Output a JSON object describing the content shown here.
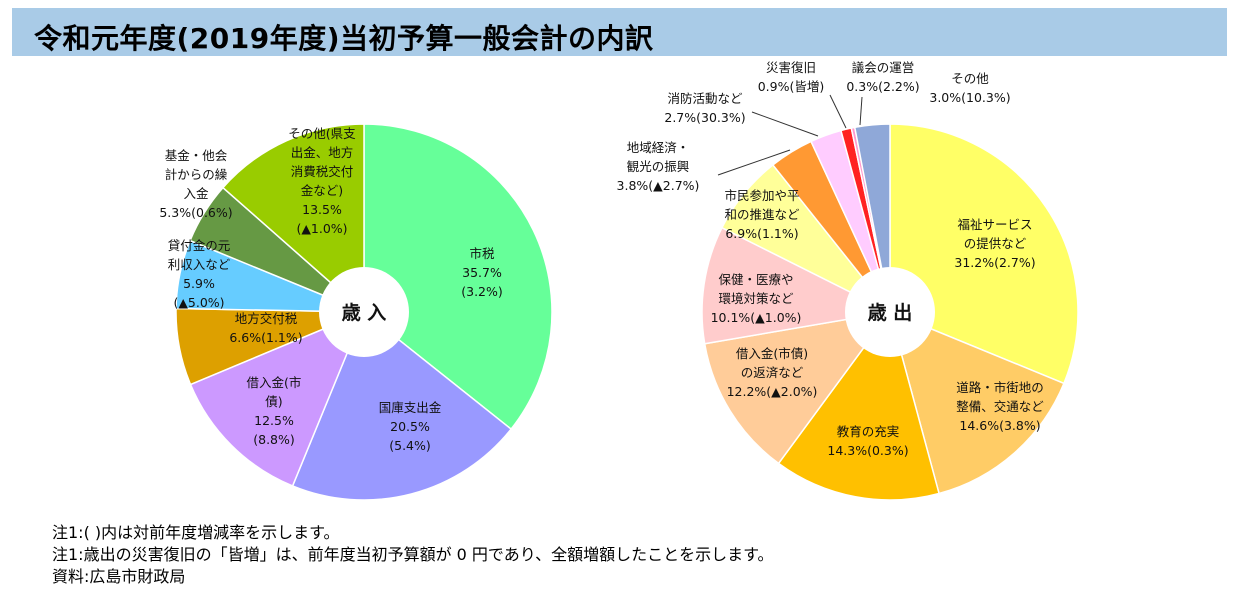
{
  "title": "令和元年度(2019年度)当初予算一般会計の内訳",
  "chart_data": [
    {
      "type": "pie",
      "center_label": "歳 入",
      "slices": [
        {
          "name": "市税",
          "value": 35.7,
          "change": "(3.2%)",
          "color": "#66ff99",
          "label_lines": [
            "市税",
            "35.7%",
            "(3.2%)"
          ]
        },
        {
          "name": "国庫支出金",
          "value": 20.5,
          "change": "(5.4%)",
          "color": "#9999ff",
          "label_lines": [
            "国庫支出金",
            "20.5%",
            "(5.4%)"
          ]
        },
        {
          "name": "借入金(市債)",
          "value": 12.5,
          "change": "(8.8%)",
          "color": "#cc99ff",
          "label_lines": [
            "借入金(市",
            "債)",
            "12.5%",
            "(8.8%)"
          ]
        },
        {
          "name": "地方交付税",
          "value": 6.6,
          "change": "(1.1%)",
          "color": "#dda000",
          "label_lines": [
            "地方交付税",
            "6.6%(1.1%)"
          ]
        },
        {
          "name": "貸付金の元利収入など",
          "value": 5.9,
          "change": "(▲5.0%)",
          "color": "#66ccff",
          "label_lines": [
            "貸付金の元",
            "利収入など",
            "5.9%",
            "(▲5.0%)"
          ]
        },
        {
          "name": "基金・他会計からの繰入金",
          "value": 5.3,
          "change": "(0.6%)",
          "color": "#669944",
          "label_lines": [
            "基金・他会",
            "計からの繰",
            "入金",
            "5.3%(0.6%)"
          ]
        },
        {
          "name": "その他(県支出金、地方消費税交付金など)",
          "value": 13.5,
          "change": "(▲1.0%)",
          "color": "#99cc00",
          "label_lines": [
            "その他(県支",
            "出金、地方",
            "消費税交付",
            "金など)",
            "13.5%",
            "(▲1.0%)"
          ]
        }
      ]
    },
    {
      "type": "pie",
      "center_label": "歳 出",
      "slices": [
        {
          "name": "福祉サービスの提供など",
          "value": 31.2,
          "change": "(2.7%)",
          "color": "#ffff66",
          "label_lines": [
            "福祉サービス",
            "の提供など",
            "31.2%(2.7%)"
          ]
        },
        {
          "name": "道路・市街地の整備、交通など",
          "value": 14.6,
          "change": "(3.8%)",
          "color": "#ffcc66",
          "label_lines": [
            "道路・市街地の",
            "整備、交通など",
            "14.6%(3.8%)"
          ]
        },
        {
          "name": "教育の充実",
          "value": 14.3,
          "change": "(0.3%)",
          "color": "#ffc000",
          "label_lines": [
            "教育の充実",
            "14.3%(0.3%)"
          ]
        },
        {
          "name": "借入金(市債)の返済など",
          "value": 12.2,
          "change": "(▲2.0%)",
          "color": "#ffcc99",
          "label_lines": [
            "借入金(市債)",
            "の返済など",
            "12.2%(▲2.0%)"
          ]
        },
        {
          "name": "保健・医療や環境対策など",
          "value": 10.1,
          "change": "(▲1.0%)",
          "color": "#ffcccc",
          "label_lines": [
            "保健・医療や",
            "環境対策など",
            "10.1%(▲1.0%)"
          ]
        },
        {
          "name": "市民参加や平和の推進など",
          "value": 6.9,
          "change": "(1.1%)",
          "color": "#ffff99",
          "label_lines": [
            "市民参加や平",
            "和の推進など",
            "6.9%(1.1%)"
          ]
        },
        {
          "name": "地域経済・観光の振興",
          "value": 3.8,
          "change": "(▲2.7%)",
          "color": "#ff9933",
          "label_lines": [
            "地域経済・",
            "観光の振興",
            "3.8%(▲2.7%)"
          ]
        },
        {
          "name": "消防活動など",
          "value": 2.7,
          "change": "(30.3%)",
          "color": "#ffccff",
          "label_lines": [
            "消防活動など",
            "2.7%(30.3%)"
          ]
        },
        {
          "name": "災害復旧",
          "value": 0.9,
          "change": "(皆増)",
          "color": "#ff2222",
          "label_lines": [
            "災害復旧",
            "0.9%(皆増)"
          ]
        },
        {
          "name": "議会の運営",
          "value": 0.3,
          "change": "(2.2%)",
          "color": "#ff99cc",
          "label_lines": [
            "議会の運営",
            "0.3%(2.2%)"
          ]
        },
        {
          "name": "その他",
          "value": 3.0,
          "change": "(10.3%)",
          "color": "#8fa8d8",
          "label_lines": [
            "その他",
            "3.0%(10.3%)"
          ]
        }
      ]
    }
  ],
  "notes": [
    "注1:( )内は対前年度増減率を示します。",
    "注1:歳出の災害復旧の「皆増」は、前年度当初予算額が 0 円であり、全額増額したことを示します。",
    "資料:広島市財政局"
  ]
}
